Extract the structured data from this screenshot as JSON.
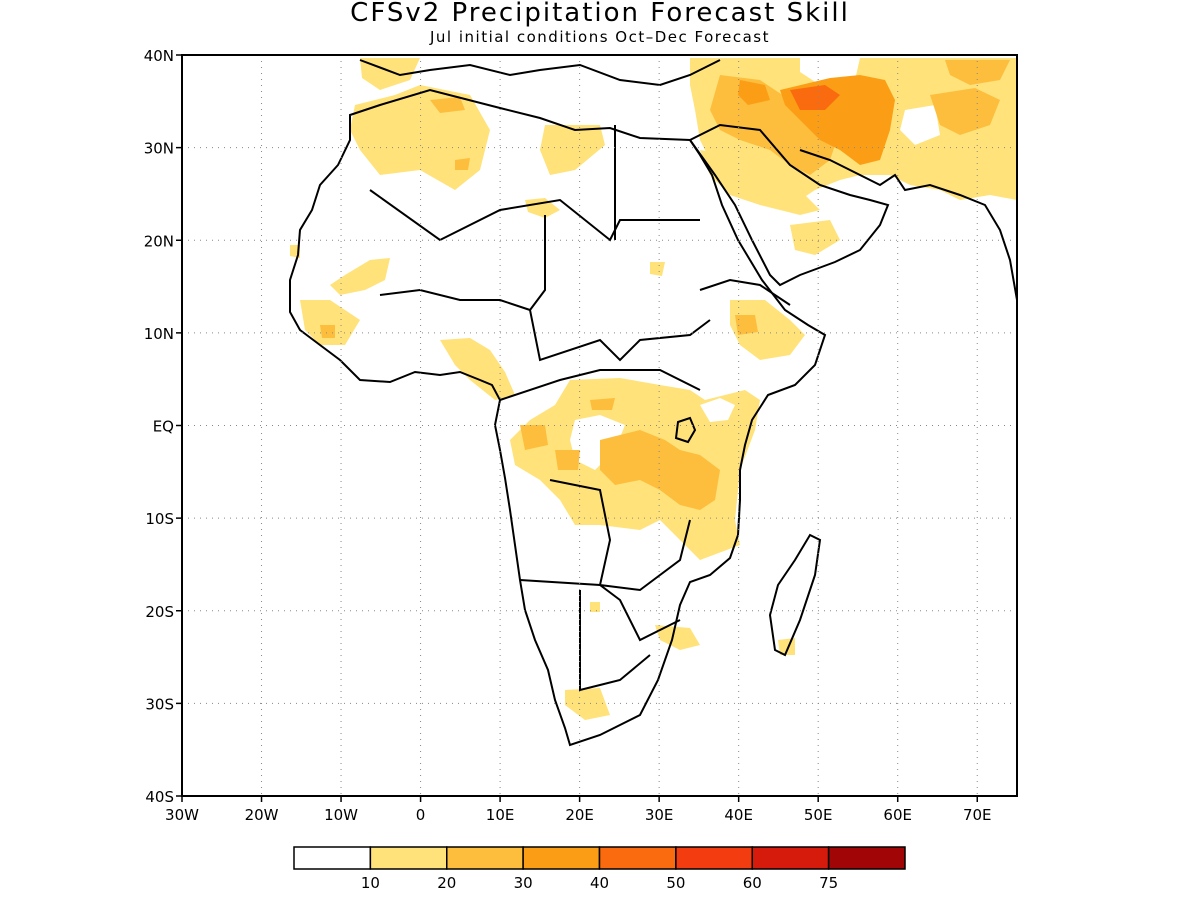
{
  "title": "CFSv2 Precipitation Forecast Skill",
  "subtitle": "Jul initial conditions   Oct–Dec Forecast",
  "map": {
    "lon_range": [
      -30,
      75
    ],
    "lat_range": [
      -40,
      40
    ],
    "lat_labels": [
      {
        "lat": 40,
        "label": "40N"
      },
      {
        "lat": 30,
        "label": "30N"
      },
      {
        "lat": 20,
        "label": "20N"
      },
      {
        "lat": 10,
        "label": "10N"
      },
      {
        "lat": 0,
        "label": "EQ"
      },
      {
        "lat": -10,
        "label": "10S"
      },
      {
        "lat": -20,
        "label": "20S"
      },
      {
        "lat": -30,
        "label": "30S"
      },
      {
        "lat": -40,
        "label": "40S"
      }
    ],
    "lon_labels": [
      {
        "lon": -30,
        "label": "30W"
      },
      {
        "lon": -20,
        "label": "20W"
      },
      {
        "lon": -10,
        "label": "10W"
      },
      {
        "lon": 0,
        "label": "0"
      },
      {
        "lon": 10,
        "label": "10E"
      },
      {
        "lon": 20,
        "label": "20E"
      },
      {
        "lon": 30,
        "label": "30E"
      },
      {
        "lon": 40,
        "label": "40E"
      },
      {
        "lon": 50,
        "label": "50E"
      },
      {
        "lon": 60,
        "label": "60E"
      },
      {
        "lon": 70,
        "label": "70E"
      }
    ],
    "grid": "dotted"
  },
  "legend": {
    "colors": [
      "#ffffff",
      "#ffe27a",
      "#fdbd3d",
      "#fb9e16",
      "#fa6a0e",
      "#f33c10",
      "#d61a0c",
      "#a20506"
    ],
    "labels": [
      "10",
      "20",
      "30",
      "40",
      "50",
      "60",
      "75"
    ]
  }
}
